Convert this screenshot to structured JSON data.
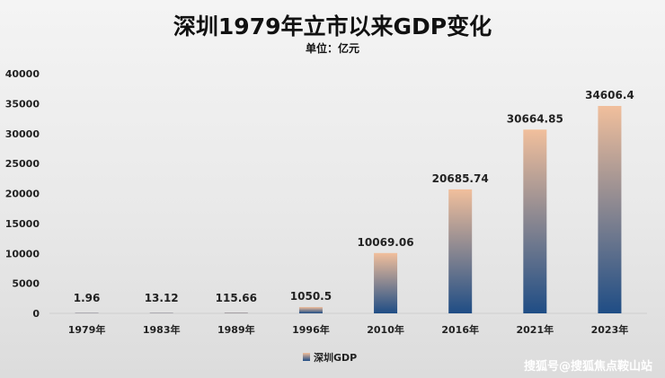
{
  "chart_data": {
    "type": "bar",
    "title": "深圳1979年立市以来GDP变化",
    "subtitle": "单位：亿元",
    "categories": [
      "1979年",
      "1983年",
      "1989年",
      "1996年",
      "2010年",
      "2016年",
      "2021年",
      "2023年"
    ],
    "series": [
      {
        "name": "深圳GDP",
        "values": [
          1.96,
          13.12,
          115.66,
          1050.5,
          10069.06,
          20685.74,
          30664.85,
          34606.4
        ],
        "labels": [
          "1.96",
          "13.12",
          "115.66",
          "1050.5",
          "10069.06",
          "20685.74",
          "30664.85",
          "34606.4"
        ]
      }
    ],
    "ylim": [
      0,
      40000
    ],
    "yticks": [
      "0",
      "5000",
      "10000",
      "15000",
      "20000",
      "25000",
      "30000",
      "35000",
      "40000"
    ],
    "grid": false,
    "legend_position": "bottom",
    "colors": {
      "bar_top": "#f1bf9c",
      "bar_bottom": "#1f4d85"
    }
  },
  "watermark": "搜狐号@搜狐焦点鞍山站"
}
